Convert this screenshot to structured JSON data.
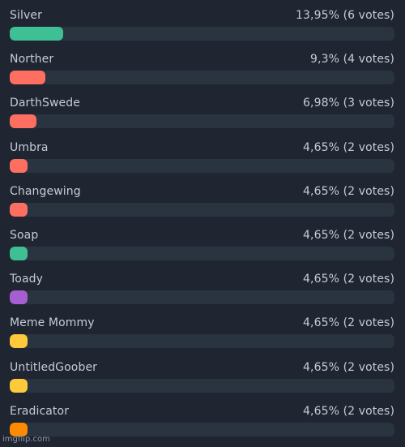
{
  "poll": {
    "options": [
      {
        "name": "Silver",
        "stat": "13,95% (6 votes)",
        "percent": 13.95,
        "color": "#3fbf94"
      },
      {
        "name": "Norther",
        "stat": "9,3% (4 votes)",
        "percent": 9.3,
        "color": "#ff6f61"
      },
      {
        "name": "DarthSwede",
        "stat": "6,98% (3 votes)",
        "percent": 6.98,
        "color": "#ff6f61"
      },
      {
        "name": "Umbra",
        "stat": "4,65% (2 votes)",
        "percent": 4.65,
        "color": "#ff6f61"
      },
      {
        "name": "Changewing",
        "stat": "4,65% (2 votes)",
        "percent": 4.65,
        "color": "#ff6f61"
      },
      {
        "name": "Soap",
        "stat": "4,65% (2 votes)",
        "percent": 4.65,
        "color": "#3fbf94"
      },
      {
        "name": "Toady",
        "stat": "4,65% (2 votes)",
        "percent": 4.65,
        "color": "#a65fd0"
      },
      {
        "name": "Meme Mommy",
        "stat": "4,65% (2 votes)",
        "percent": 4.65,
        "color": "#ffc93c"
      },
      {
        "name": "UntitledGoober",
        "stat": "4,65% (2 votes)",
        "percent": 4.65,
        "color": "#ffc93c"
      },
      {
        "name": "Eradicator",
        "stat": "4,65% (2 votes)",
        "percent": 4.65,
        "color": "#ff8a00"
      }
    ]
  },
  "watermark": "imgflip.com"
}
